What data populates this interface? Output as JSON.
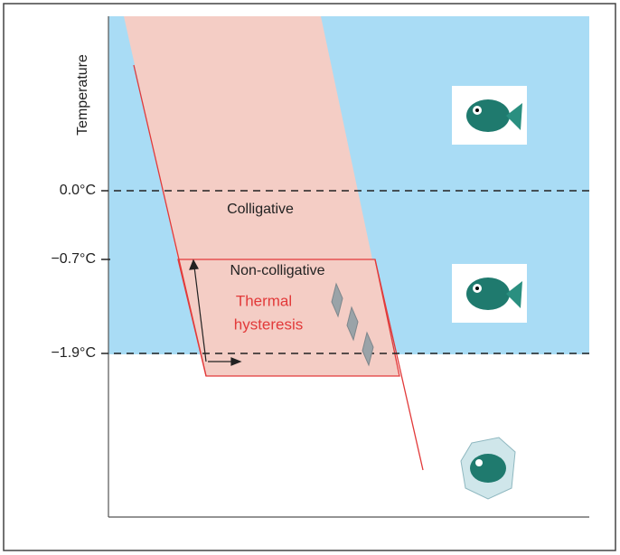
{
  "axis": {
    "label": "Temperature",
    "ticks": [
      "0.0°C",
      "−0.7°C",
      "−1.9°C"
    ]
  },
  "regions": {
    "colligative": "Colligative",
    "non_colligative": "Non-colligative",
    "hysteresis": [
      "Thermal",
      "hysteresis"
    ]
  }
}
